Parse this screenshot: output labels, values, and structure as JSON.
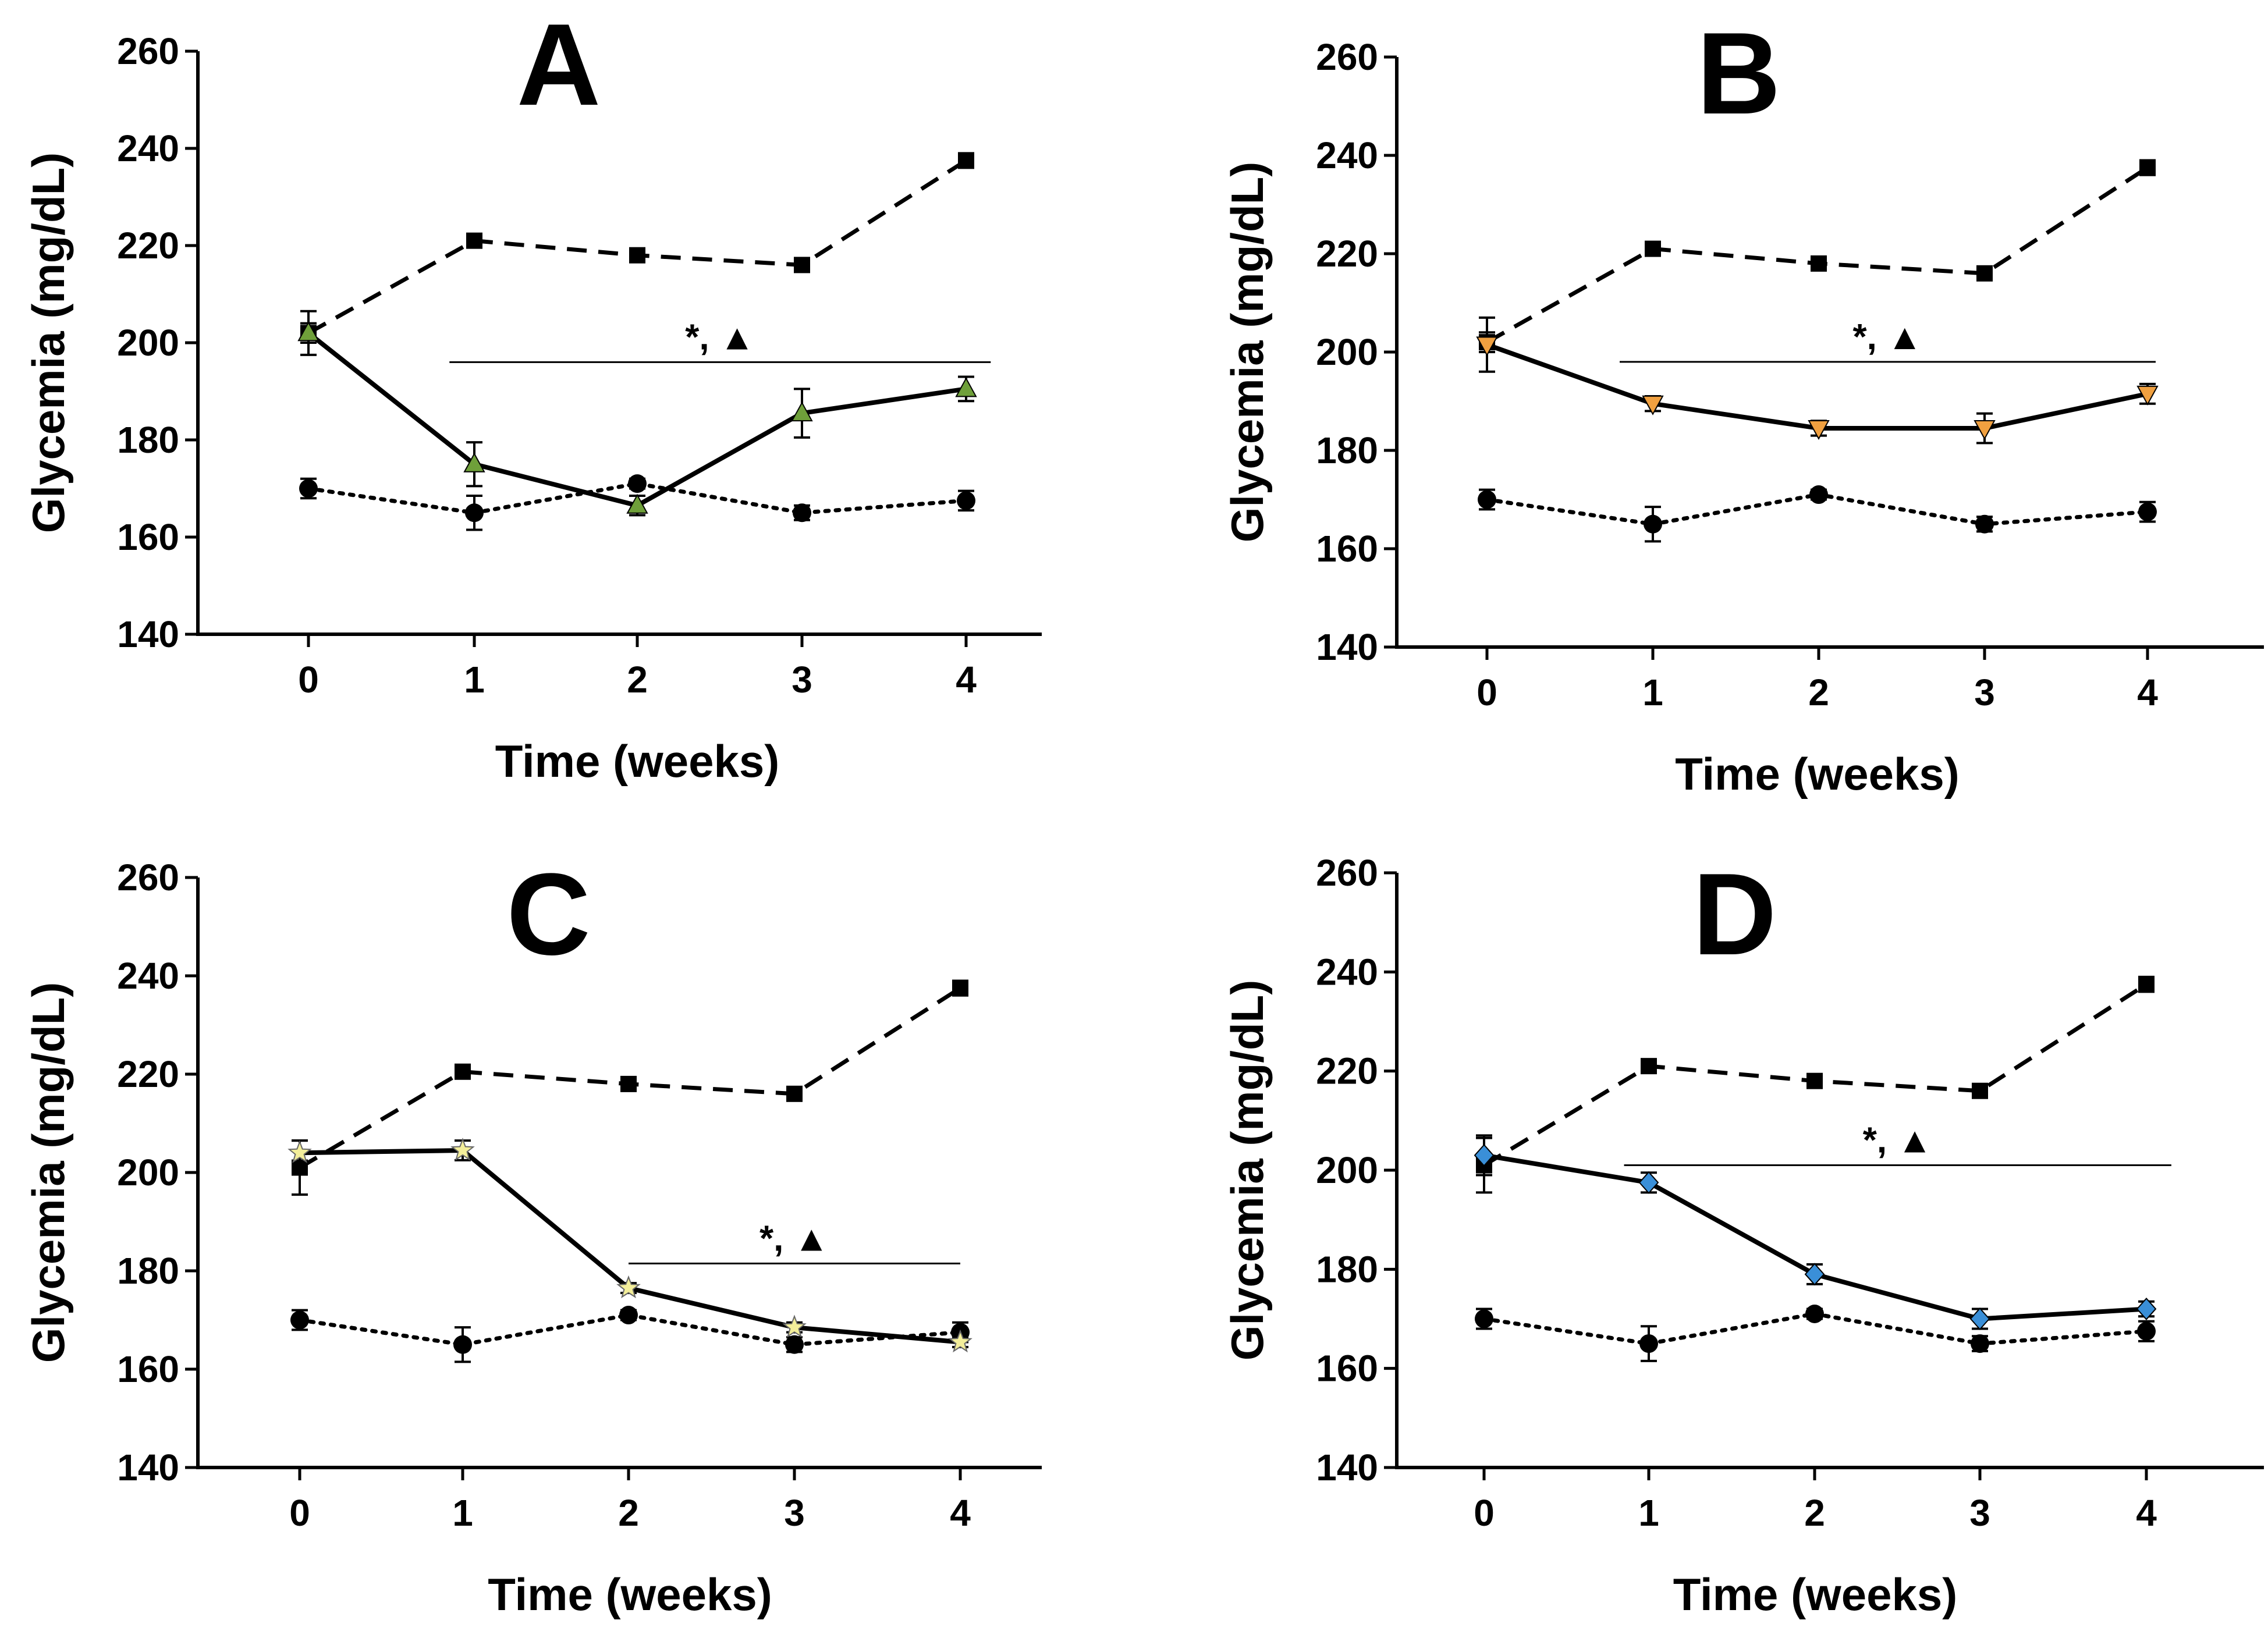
{
  "chart_data": [
    {
      "type": "line",
      "panel_label": "A",
      "xlabel": "Time (weeks)",
      "ylabel": "Glycemia (mg/dL)",
      "x": [
        0,
        1,
        2,
        3,
        4
      ],
      "xticks": [
        "0",
        "1",
        "2",
        "3",
        "4"
      ],
      "ylim": [
        140,
        260
      ],
      "yticks": [
        "140",
        "160",
        "180",
        "200",
        "220",
        "240",
        "260"
      ],
      "series": [
        {
          "name": "dashed-square",
          "style": "dashed",
          "marker": "square",
          "color": "#000000",
          "values": [
            202,
            221,
            218,
            216,
            237.5
          ],
          "errors": [
            2,
            1,
            1,
            1,
            1.5
          ]
        },
        {
          "name": "dotted-circle",
          "style": "dotted",
          "marker": "circle",
          "color": "#000000",
          "values": [
            170,
            165,
            171,
            165,
            167.5
          ],
          "errors": [
            2,
            3.5,
            1,
            1.5,
            2
          ]
        },
        {
          "name": "solid-treatment",
          "style": "solid",
          "marker": "triangle-up",
          "color": "#6fa03a",
          "values": [
            202,
            175,
            166.5,
            185.5,
            190.5
          ],
          "errors": [
            4.5,
            4.5,
            2,
            5,
            2.5
          ]
        }
      ],
      "significance": {
        "text": "*, ▲",
        "x_start": 0.85,
        "x_end": 4.15,
        "y": 196
      }
    },
    {
      "type": "line",
      "panel_label": "B",
      "xlabel": "Time (weeks)",
      "ylabel": "Glycemia (mg/dL)",
      "x": [
        0,
        1,
        2,
        3,
        4
      ],
      "xticks": [
        "0",
        "1",
        "2",
        "3",
        "4"
      ],
      "ylim": [
        140,
        260
      ],
      "yticks": [
        "140",
        "160",
        "180",
        "200",
        "220",
        "240",
        "260"
      ],
      "series": [
        {
          "name": "dashed-square",
          "style": "dashed",
          "marker": "square",
          "color": "#000000",
          "values": [
            202,
            221,
            218,
            216,
            237.5
          ],
          "errors": [
            2,
            1,
            1,
            1,
            1.5
          ]
        },
        {
          "name": "dotted-circle",
          "style": "dotted",
          "marker": "circle",
          "color": "#000000",
          "values": [
            170,
            165,
            171,
            165,
            167.5
          ],
          "errors": [
            2,
            3.5,
            1,
            1.5,
            2
          ]
        },
        {
          "name": "solid-treatment",
          "style": "solid",
          "marker": "triangle-down",
          "color": "#f0a040",
          "values": [
            201.5,
            189.5,
            184.5,
            184.5,
            191.5
          ],
          "errors": [
            5.5,
            1.5,
            1.5,
            3,
            2
          ]
        }
      ],
      "significance": {
        "text": "*, ▲",
        "x_start": 0.8,
        "x_end": 4.05,
        "y": 198
      }
    },
    {
      "type": "line",
      "panel_label": "C",
      "xlabel": "Time (weeks)",
      "ylabel": "Glycemia (mg/dL)",
      "x": [
        0,
        1,
        2,
        3,
        4
      ],
      "xticks": [
        "0",
        "1",
        "2",
        "3",
        "4"
      ],
      "ylim": [
        140,
        260
      ],
      "yticks": [
        "140",
        "160",
        "180",
        "200",
        "220",
        "240",
        "260"
      ],
      "series": [
        {
          "name": "dashed-square",
          "style": "dashed",
          "marker": "square",
          "color": "#000000",
          "values": [
            201,
            220.5,
            218,
            216,
            237.5
          ],
          "errors": [
            5.5,
            1,
            1,
            1,
            1.5
          ]
        },
        {
          "name": "dotted-circle",
          "style": "dotted",
          "marker": "circle",
          "color": "#000000",
          "values": [
            170,
            165,
            171,
            165,
            167.5
          ],
          "errors": [
            2,
            3.5,
            1,
            1.5,
            2
          ]
        },
        {
          "name": "solid-treatment",
          "style": "solid",
          "marker": "star",
          "color": "#f3ee9a",
          "values": [
            204,
            204.5,
            176.5,
            168.5,
            165.5
          ],
          "errors": [
            2.5,
            2,
            1,
            1,
            1
          ]
        }
      ],
      "significance": {
        "text": "*, ▲",
        "x_start": 2.0,
        "x_end": 4.0,
        "y": 181.5
      }
    },
    {
      "type": "line",
      "panel_label": "D",
      "xlabel": "Time (weeks)",
      "ylabel": "Glycemia (mg/dL)",
      "x": [
        0,
        1,
        2,
        3,
        4
      ],
      "xticks": [
        "0",
        "1",
        "2",
        "3",
        "4"
      ],
      "ylim": [
        140,
        260
      ],
      "yticks": [
        "140",
        "160",
        "180",
        "200",
        "220",
        "240",
        "260"
      ],
      "series": [
        {
          "name": "dashed-square",
          "style": "dashed",
          "marker": "square",
          "color": "#000000",
          "values": [
            201,
            221,
            218,
            216,
            237.5
          ],
          "errors": [
            5.5,
            1,
            1,
            1,
            1.5
          ]
        },
        {
          "name": "dotted-circle",
          "style": "dotted",
          "marker": "circle",
          "color": "#000000",
          "values": [
            170,
            165,
            171,
            165,
            167.5
          ],
          "errors": [
            2,
            3.5,
            1,
            1.5,
            2
          ]
        },
        {
          "name": "solid-treatment",
          "style": "solid",
          "marker": "diamond",
          "color": "#3a8fd8",
          "values": [
            203,
            197.5,
            179,
            170,
            172
          ],
          "errors": [
            4,
            2,
            2,
            2,
            1.5
          ]
        }
      ],
      "significance": {
        "text": "*, ▲",
        "x_start": 0.85,
        "x_end": 4.15,
        "y": 201
      }
    }
  ]
}
